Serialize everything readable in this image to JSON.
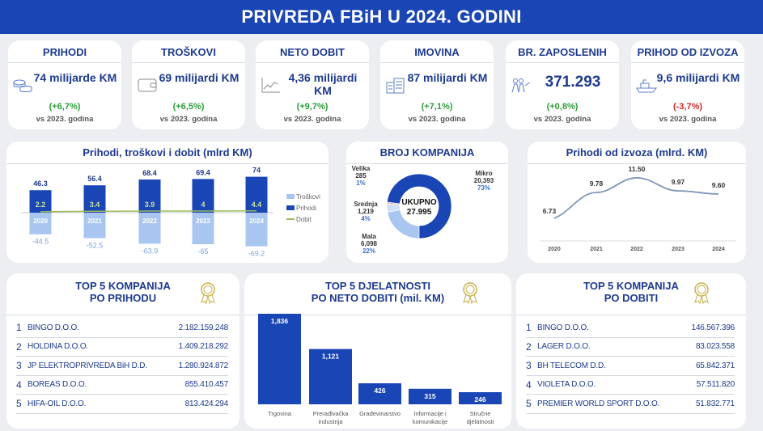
{
  "title": "PRIVREDA FBiH U 2024. GODINI",
  "kpis": [
    {
      "title": "PRIHODI",
      "value": "74 milijarde KM",
      "change": "(+6,7%)",
      "note": "vs 2023. godina",
      "icon": "coins-icon",
      "positive": true
    },
    {
      "title": "TROŠKOVI",
      "value": "69 milijardi KM",
      "change": "(+6,5%)",
      "note": "vs 2023. godina",
      "icon": "wallet-icon",
      "positive": true
    },
    {
      "title": "NETO DOBIT",
      "value": "4,36 milijardi KM",
      "change": "(+9,7%)",
      "note": "vs 2023. godina",
      "icon": "trend-chart-icon",
      "positive": true
    },
    {
      "title": "IMOVINA",
      "value": "87 milijardi KM",
      "change": "(+7,1%)",
      "note": "vs 2023. godina",
      "icon": "buildings-icon",
      "positive": true
    },
    {
      "title": "BR. ZAPOSLENIH",
      "value": "371.293",
      "change": "(+0,8%)",
      "note": "vs 2023. godina",
      "icon": "people-icon",
      "positive": true
    },
    {
      "title": "PRIHOD OD IZVOZA",
      "value": "9,6 milijardi KM",
      "change": "(-3,7%)",
      "note": "vs 2023. godina",
      "icon": "ship-icon",
      "positive": false
    }
  ],
  "colors": {
    "dark": "#1a45b5",
    "light": "#a9c6f0",
    "dobit": "#9bbb59",
    "green": "#2e9e3a",
    "red": "#d42a2a"
  },
  "chart_data": [
    {
      "type": "bar",
      "title": "Prihodi, troškovi i dobit (mlrd KM)",
      "categories": [
        "2020",
        "2021",
        "2022",
        "2023",
        "2024"
      ],
      "series": [
        {
          "name": "Troškovi",
          "values": [
            -44.5,
            -52.5,
            -63.9,
            -65.0,
            -69.2
          ]
        },
        {
          "name": "Prihodi",
          "values": [
            46.3,
            56.4,
            68.4,
            69.4,
            74.0
          ]
        },
        {
          "name": "Dobit",
          "values": [
            2.2,
            3.4,
            3.9,
            4.0,
            4.4
          ]
        }
      ],
      "legend": "right"
    },
    {
      "type": "pie",
      "title": "BROJ KOMPANIJA",
      "center_label": "UKUPNO",
      "total": "27.995",
      "slices": [
        {
          "name": "Mala",
          "count": "6,098",
          "value": 22,
          "pct": "22%"
        },
        {
          "name": "Srednja",
          "count": "1,219",
          "value": 4,
          "pct": "4%"
        },
        {
          "name": "Velika",
          "count": "285",
          "value": 1,
          "pct": "1%"
        },
        {
          "name": "Mikro",
          "count": "20,393",
          "value": 73,
          "pct": "73%"
        }
      ]
    },
    {
      "type": "line",
      "title": "Prihodi od izvoza (mlrd. KM)",
      "x": [
        "2020",
        "2021",
        "2022",
        "2023",
        "2024"
      ],
      "y": [
        6.73,
        9.78,
        11.5,
        9.97,
        9.6
      ],
      "labels": [
        "6.73",
        "9.78",
        "11.50",
        "9.97",
        "9.60"
      ]
    },
    {
      "type": "bar",
      "title": "TOP 5 DJELATNOSTI PO NETO DOBITI (mil. KM)",
      "categories": [
        "Trgovina",
        "Prerađivačka industrija",
        "Građevinarstvo",
        "Informacije i komunikacije",
        "Stručne djelatnosti"
      ],
      "values": [
        1836,
        1121,
        426,
        315,
        246
      ],
      "labels": [
        "1,836",
        "1,121",
        "426",
        "315",
        "246"
      ]
    }
  ],
  "top_prihod": {
    "title1": "TOP 5 KOMPANIJA",
    "title2": "PO PRIHODU",
    "rows": [
      {
        "n": "1",
        "name": "BINGO D.O.O.",
        "value": "2.182.159.248"
      },
      {
        "n": "2",
        "name": "HOLDINA D.O.O.",
        "value": "1.409.218.292"
      },
      {
        "n": "3",
        "name": "JP ELEKTROPRIVREDA BiH D.D.",
        "value": "1.280.924.872"
      },
      {
        "n": "4",
        "name": "BOREAS D.O.O.",
        "value": "855.410.457"
      },
      {
        "n": "5",
        "name": "HIFA-OIL D.O.O.",
        "value": "813.424.294"
      }
    ]
  },
  "top_djel": {
    "title1": "TOP 5 DJELATNOSTI",
    "title2": "PO NETO DOBITI (mil. KM)"
  },
  "top_dobit": {
    "title1": "TOP 5 KOMPANIJA",
    "title2": "PO DOBITI",
    "rows": [
      {
        "n": "1",
        "name": "BINGO D.O.O.",
        "value": "146.567.396"
      },
      {
        "n": "2",
        "name": "LAGER D.O.O.",
        "value": "83.023.558"
      },
      {
        "n": "3",
        "name": "BH TELECOM D.D.",
        "value": "65.842.371"
      },
      {
        "n": "4",
        "name": "VIOLETA D.O.O.",
        "value": "57.511.820"
      },
      {
        "n": "5",
        "name": "PREMIER WORLD SPORT D.O.O.",
        "value": "51.832.771"
      }
    ]
  }
}
